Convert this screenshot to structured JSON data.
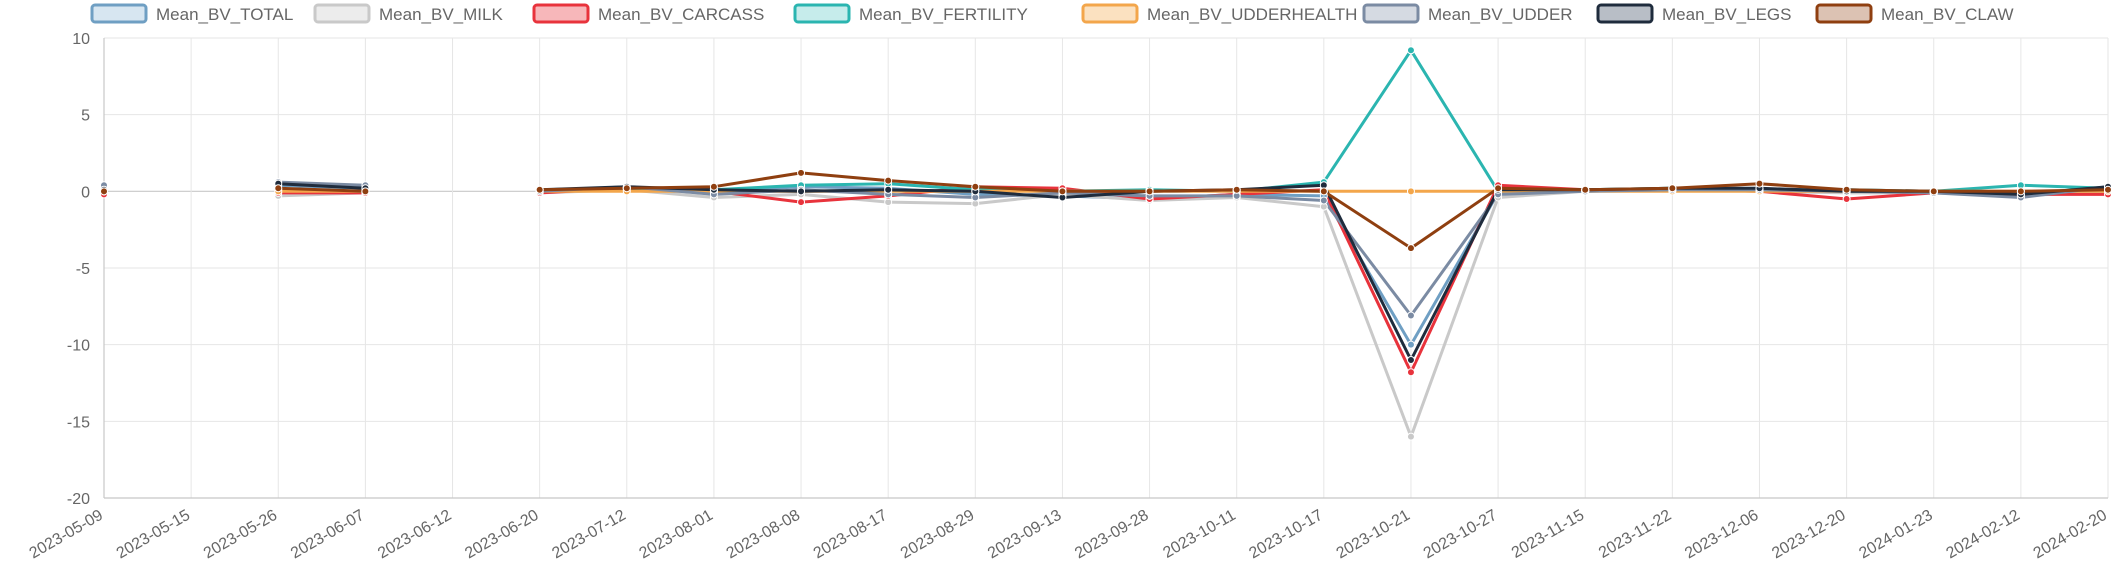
{
  "chart_data": {
    "type": "line",
    "title": "",
    "xlabel": "",
    "ylabel": "",
    "ylim": [
      -20,
      10
    ],
    "yticks": [
      10,
      5,
      0,
      -5,
      -10,
      -15,
      -20
    ],
    "grid": true,
    "legend_position": "top",
    "x": [
      "2023-05-09",
      "2023-05-15",
      "2023-05-26",
      "2023-06-07",
      "2023-06-12",
      "2023-06-20",
      "2023-07-12",
      "2023-08-01",
      "2023-08-08",
      "2023-08-17",
      "2023-08-29",
      "2023-09-13",
      "2023-09-28",
      "2023-10-11",
      "2023-10-17",
      "2023-10-21",
      "2023-10-27",
      "2023-11-15",
      "2023-11-22",
      "2023-12-06",
      "2023-12-20",
      "2024-01-23",
      "2024-02-12",
      "2024-02-20"
    ],
    "series": [
      {
        "name": "Mean_BV_TOTAL",
        "color": "#6f9fc3",
        "fill": "#d7e6f1",
        "values": [
          0.2,
          null,
          0.4,
          0.2,
          null,
          null,
          0.2,
          0.0,
          0.3,
          0.2,
          -0.2,
          -0.3,
          -0.5,
          -0.2,
          -0.3,
          -10.0,
          -0.1,
          0.0,
          0.2,
          0.1,
          0.1,
          0.0,
          -0.3,
          0.3
        ]
      },
      {
        "name": "Mean_BV_MILK",
        "color": "#c9c9c9",
        "fill": "#ececec",
        "values": [
          0.1,
          null,
          -0.3,
          -0.1,
          null,
          -0.1,
          0.1,
          -0.4,
          -0.2,
          -0.7,
          -0.8,
          -0.2,
          -0.6,
          -0.4,
          -1.0,
          -16.0,
          -0.4,
          0.0,
          0.1,
          0.0,
          -0.1,
          -0.1,
          -0.3,
          0.0
        ]
      },
      {
        "name": "Mean_BV_CARCASS",
        "color": "#e8333c",
        "fill": "#f7b7ba",
        "values": [
          -0.2,
          null,
          -0.1,
          -0.1,
          null,
          -0.1,
          0.2,
          0.0,
          -0.7,
          -0.3,
          0.3,
          0.2,
          -0.5,
          -0.2,
          0.1,
          -11.8,
          0.4,
          0.1,
          0.1,
          0.0,
          -0.5,
          -0.1,
          -0.2,
          -0.2
        ]
      },
      {
        "name": "Mean_BV_FERTILITY",
        "color": "#2bb5b0",
        "fill": "#c6eceb",
        "values": [
          0.0,
          null,
          0.1,
          0.0,
          null,
          0.1,
          0.2,
          0.1,
          0.4,
          0.5,
          0.1,
          0.0,
          0.1,
          0.0,
          0.6,
          9.2,
          0.0,
          0.1,
          0.2,
          0.1,
          0.1,
          0.0,
          0.4,
          0.2
        ]
      },
      {
        "name": "Mean_BV_UDDERHEALTH",
        "color": "#f3a64b",
        "fill": "#fbe1c0",
        "values": [
          0.0,
          null,
          0.0,
          0.0,
          null,
          0.0,
          0.0,
          0.0,
          0.0,
          0.0,
          0.0,
          0.0,
          0.0,
          0.0,
          0.0,
          0.0,
          0.0,
          0.0,
          0.0,
          0.0,
          0.0,
          0.0,
          0.0,
          0.0
        ]
      },
      {
        "name": "Mean_BV_UDDER",
        "color": "#7b8ba3",
        "fill": "#d5dae2",
        "values": [
          0.4,
          null,
          0.6,
          0.4,
          null,
          0.0,
          0.3,
          -0.2,
          0.1,
          -0.2,
          -0.4,
          -0.1,
          -0.3,
          -0.3,
          -0.6,
          -8.1,
          -0.2,
          0.0,
          0.1,
          0.1,
          0.0,
          -0.1,
          -0.4,
          0.3
        ]
      },
      {
        "name": "Mean_BV_LEGS",
        "color": "#1f2c3d",
        "fill": "#b8bec6",
        "values": [
          0.1,
          null,
          0.5,
          0.2,
          null,
          0.1,
          0.3,
          0.1,
          0.0,
          0.1,
          0.0,
          -0.4,
          0.0,
          0.1,
          0.4,
          -11.0,
          0.1,
          0.1,
          0.2,
          0.2,
          0.0,
          0.0,
          -0.2,
          0.3
        ]
      },
      {
        "name": "Mean_BV_CLAW",
        "color": "#8f3f10",
        "fill": "#dcc2b3",
        "values": [
          0.0,
          null,
          0.2,
          0.0,
          null,
          0.1,
          0.2,
          0.3,
          1.2,
          0.7,
          0.3,
          0.0,
          0.0,
          0.1,
          0.0,
          -3.7,
          0.2,
          0.1,
          0.2,
          0.5,
          0.1,
          0.0,
          0.0,
          0.1
        ]
      }
    ]
  }
}
